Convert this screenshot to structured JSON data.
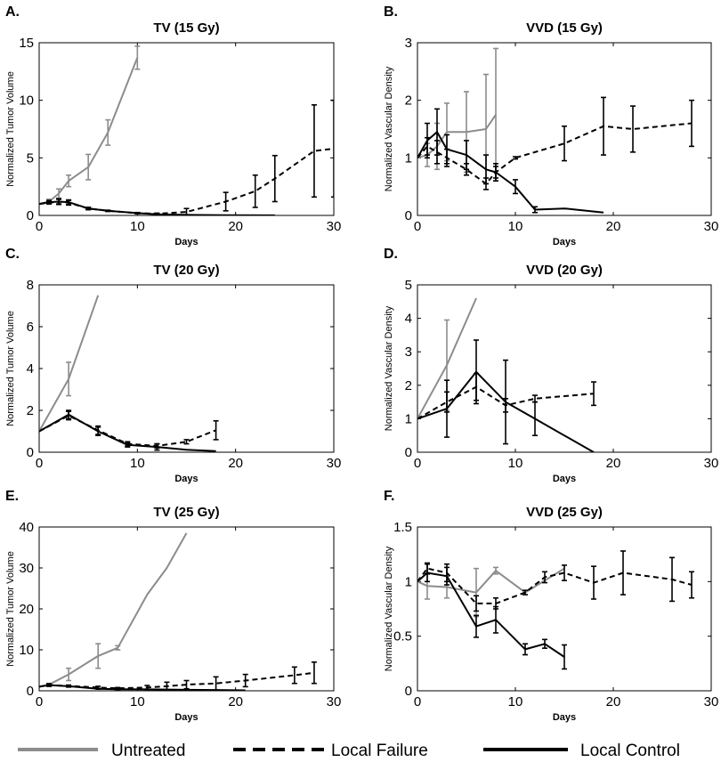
{
  "figure": {
    "legend": [
      {
        "name": "Untreated",
        "color": "#8c8c8c",
        "dash": "solid"
      },
      {
        "name": "Local Failure",
        "color": "#000000",
        "dash": "dashed"
      },
      {
        "name": "Local Control",
        "color": "#000000",
        "dash": "solid"
      }
    ]
  },
  "chart_data": [
    {
      "letter": "A.",
      "type": "line",
      "title": "TV (15 Gy)",
      "xlabel": "Days",
      "ylabel": "Normalized Tumor Volume",
      "xlim": [
        0,
        30
      ],
      "ylim": [
        0,
        15
      ],
      "xticks": [
        0,
        10,
        20,
        30
      ],
      "yticks": [
        0,
        5,
        10,
        15
      ],
      "series": [
        {
          "name": "Untreated",
          "color": "#8c8c8c",
          "dash": "solid",
          "x": [
            0,
            1,
            2,
            3,
            5,
            7,
            10
          ],
          "y": [
            1,
            1.2,
            1.9,
            3,
            4.2,
            7.2,
            13.7
          ],
          "err": [
            0,
            0.2,
            0.4,
            0.5,
            1.1,
            1.1,
            1.0
          ]
        },
        {
          "name": "Local Failure",
          "color": "#000000",
          "dash": "dashed",
          "x": [
            0,
            1,
            2,
            3,
            5,
            7,
            10,
            12,
            15,
            19,
            22,
            24,
            28,
            30
          ],
          "y": [
            1,
            1.1,
            1.2,
            1.1,
            0.6,
            0.4,
            0.2,
            0.15,
            0.3,
            1.2,
            2.1,
            3.2,
            5.6,
            5.8
          ],
          "err": [
            0,
            0.1,
            0.2,
            0.2,
            0.1,
            0.05,
            0.05,
            0.05,
            0.3,
            0.8,
            1.4,
            2.0,
            4.0,
            4.2
          ]
        },
        {
          "name": "Local Control",
          "color": "#000000",
          "dash": "solid",
          "x": [
            0,
            1,
            2,
            3,
            5,
            7,
            10,
            12,
            15,
            19,
            24
          ],
          "y": [
            1,
            1.15,
            1.2,
            1.15,
            0.6,
            0.4,
            0.2,
            0.1,
            0.05,
            0.02,
            0.01
          ],
          "err": [
            0,
            0.15,
            0.25,
            0.2,
            0.1,
            0.05,
            0.05,
            0,
            0,
            0,
            0
          ]
        }
      ]
    },
    {
      "letter": "B.",
      "type": "line",
      "title": "VVD (15 Gy)",
      "xlabel": "Days",
      "ylabel": "Normalized Vascular Density",
      "xlim": [
        0,
        30
      ],
      "ylim": [
        0,
        3
      ],
      "xticks": [
        0,
        10,
        20,
        30
      ],
      "yticks": [
        0,
        1,
        2,
        3
      ],
      "series": [
        {
          "name": "Untreated",
          "color": "#8c8c8c",
          "dash": "solid",
          "x": [
            0,
            1,
            2,
            3,
            5,
            7,
            8
          ],
          "y": [
            1,
            1.05,
            1.2,
            1.45,
            1.45,
            1.5,
            1.75
          ],
          "err": [
            0,
            0.2,
            0.4,
            0.5,
            0.7,
            0.95,
            1.15
          ]
        },
        {
          "name": "Local Failure",
          "color": "#000000",
          "dash": "dashed",
          "x": [
            0,
            1,
            2,
            3,
            5,
            7,
            8,
            10,
            15,
            19,
            22,
            28
          ],
          "y": [
            1,
            1.2,
            1.1,
            1.0,
            0.8,
            0.55,
            0.75,
            1.0,
            1.25,
            1.55,
            1.5,
            1.6
          ],
          "err": [
            0,
            0.15,
            0.2,
            0.15,
            0.1,
            0.1,
            0.1,
            0.02,
            0.3,
            0.5,
            0.4,
            0.4
          ]
        },
        {
          "name": "Local Control",
          "color": "#000000",
          "dash": "solid",
          "x": [
            0,
            1,
            2,
            3,
            5,
            7,
            8,
            10,
            12,
            15,
            19
          ],
          "y": [
            1,
            1.3,
            1.45,
            1.15,
            1.05,
            0.8,
            0.75,
            0.5,
            0.1,
            0.12,
            0.05
          ],
          "err": [
            0,
            0.3,
            0.4,
            0.25,
            0.25,
            0.25,
            0.15,
            0.12,
            0.05,
            0,
            0
          ]
        }
      ]
    },
    {
      "letter": "C.",
      "type": "line",
      "title": "TV (20 Gy)",
      "xlabel": "Days",
      "ylabel": "Normalized Tumor Volume",
      "xlim": [
        0,
        30
      ],
      "ylim": [
        0,
        8
      ],
      "xticks": [
        0,
        10,
        20,
        30
      ],
      "yticks": [
        0,
        2,
        4,
        6,
        8
      ],
      "series": [
        {
          "name": "Untreated",
          "color": "#8c8c8c",
          "dash": "solid",
          "x": [
            0,
            3,
            6
          ],
          "y": [
            1,
            3.5,
            7.5
          ],
          "err": [
            0,
            0.8,
            0
          ]
        },
        {
          "name": "Local Failure",
          "color": "#000000",
          "dash": "dashed",
          "x": [
            0,
            3,
            6,
            9,
            12,
            15,
            18
          ],
          "y": [
            1,
            1.75,
            1.05,
            0.4,
            0.3,
            0.5,
            1.05
          ],
          "err": [
            0,
            0.2,
            0.2,
            0.1,
            0.1,
            0.1,
            0.45
          ]
        },
        {
          "name": "Local Control",
          "color": "#000000",
          "dash": "solid",
          "x": [
            0,
            3,
            6,
            9,
            12,
            15,
            18
          ],
          "y": [
            1,
            1.8,
            1.0,
            0.35,
            0.25,
            0.12,
            0.05
          ],
          "err": [
            0,
            0.2,
            0.2,
            0.1,
            0.15,
            0,
            0
          ]
        }
      ]
    },
    {
      "letter": "D.",
      "type": "line",
      "title": "VVD (20 Gy)",
      "xlabel": "Days",
      "ylabel": "Normalized Vascular Density",
      "xlim": [
        0,
        30
      ],
      "ylim": [
        0,
        5
      ],
      "xticks": [
        0,
        10,
        20,
        30
      ],
      "yticks": [
        0,
        1,
        2,
        3,
        4,
        5
      ],
      "series": [
        {
          "name": "Untreated",
          "color": "#8c8c8c",
          "dash": "solid",
          "x": [
            0,
            3,
            6
          ],
          "y": [
            1,
            2.6,
            4.6
          ],
          "err": [
            0,
            1.35,
            0
          ]
        },
        {
          "name": "Local Failure",
          "color": "#000000",
          "dash": "dashed",
          "x": [
            0,
            3,
            6,
            9,
            12,
            18
          ],
          "y": [
            1,
            1.5,
            1.95,
            1.4,
            1.6,
            1.75
          ],
          "err": [
            0,
            0.3,
            0.4,
            0.2,
            0.1,
            0.35
          ]
        },
        {
          "name": "Local Control",
          "color": "#000000",
          "dash": "solid",
          "x": [
            0,
            3,
            6,
            9,
            12,
            18
          ],
          "y": [
            1,
            1.3,
            2.4,
            1.5,
            1.0,
            0
          ],
          "err": [
            0,
            0.85,
            0.95,
            1.25,
            0.5,
            0
          ]
        }
      ]
    },
    {
      "letter": "E.",
      "type": "line",
      "title": "TV (25 Gy)",
      "xlabel": "Days",
      "ylabel": "Normalized Tumor Volume",
      "xlim": [
        0,
        30
      ],
      "ylim": [
        0,
        40
      ],
      "xticks": [
        0,
        10,
        20,
        30
      ],
      "yticks": [
        0,
        10,
        20,
        30,
        40
      ],
      "series": [
        {
          "name": "Untreated",
          "color": "#8c8c8c",
          "dash": "solid",
          "x": [
            0,
            1,
            3,
            6,
            8,
            11,
            13,
            15
          ],
          "y": [
            1,
            1.5,
            4,
            8.5,
            10.5,
            23.5,
            30,
            38.5
          ],
          "err": [
            0,
            0.3,
            1.5,
            3.0,
            0.5,
            0,
            0,
            0
          ]
        },
        {
          "name": "Local Failure",
          "color": "#000000",
          "dash": "dashed",
          "x": [
            0,
            1,
            3,
            6,
            8,
            11,
            13,
            15,
            18,
            21,
            26,
            28
          ],
          "y": [
            1,
            1.4,
            1.2,
            0.8,
            0.6,
            0.8,
            1.1,
            1.5,
            1.8,
            2.5,
            3.8,
            4.4
          ],
          "err": [
            0,
            0.3,
            0.2,
            0.3,
            0.2,
            0.5,
            1.0,
            1.0,
            1.6,
            1.5,
            2.0,
            2.6
          ]
        },
        {
          "name": "Local Control",
          "color": "#000000",
          "dash": "solid",
          "x": [
            0,
            1,
            3,
            6,
            8,
            11,
            13,
            15,
            18,
            21
          ],
          "y": [
            1,
            1.4,
            1.1,
            0.5,
            0.4,
            0.35,
            0.3,
            0.25,
            0.2,
            0.1
          ],
          "err": [
            0,
            0.3,
            0.2,
            0.1,
            0.1,
            0,
            0,
            0,
            0,
            0
          ]
        }
      ]
    },
    {
      "letter": "F.",
      "type": "line",
      "title": "VVD (25 Gy)",
      "xlabel": "Days",
      "ylabel": "Normalized Vascular Density",
      "xlim": [
        0,
        30
      ],
      "ylim": [
        0,
        1.5
      ],
      "xticks": [
        0,
        10,
        20,
        30
      ],
      "yticks": [
        0,
        0.5,
        1,
        1.5
      ],
      "series": [
        {
          "name": "Untreated",
          "color": "#8c8c8c",
          "dash": "solid",
          "x": [
            0,
            1,
            3,
            6,
            8,
            11,
            15
          ],
          "y": [
            1,
            0.96,
            0.95,
            0.9,
            1.1,
            0.9,
            1.12
          ],
          "err": [
            0,
            0.12,
            0.1,
            0.22,
            0.03,
            0,
            0
          ]
        },
        {
          "name": "Local Failure",
          "color": "#000000",
          "dash": "dashed",
          "x": [
            0,
            1,
            3,
            6,
            8,
            11,
            13,
            15,
            18,
            21,
            26,
            28
          ],
          "y": [
            1,
            1.12,
            1.08,
            0.8,
            0.8,
            0.9,
            1.04,
            1.08,
            0.99,
            1.08,
            1.02,
            0.97
          ],
          "err": [
            0,
            0.05,
            0.08,
            0.07,
            0.05,
            0.02,
            0.05,
            0.07,
            0.15,
            0.2,
            0.2,
            0.12
          ]
        },
        {
          "name": "Local Control",
          "color": "#000000",
          "dash": "solid",
          "x": [
            0,
            1,
            3,
            6,
            8,
            11,
            13,
            15
          ],
          "y": [
            1,
            1.08,
            1.05,
            0.59,
            0.65,
            0.38,
            0.43,
            0.31
          ],
          "err": [
            0,
            0.08,
            0.08,
            0.1,
            0.12,
            0.05,
            0.04,
            0.11
          ]
        }
      ]
    }
  ]
}
